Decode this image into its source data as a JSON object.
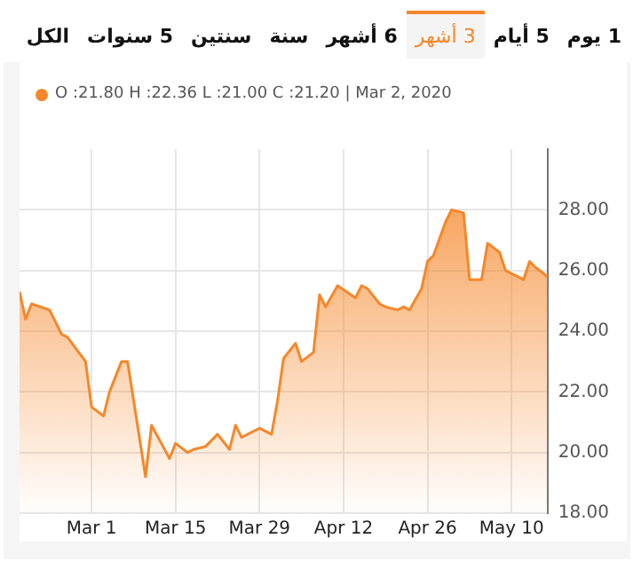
{
  "chart_data": {
    "type": "area",
    "subtitle": "O :21.80 H :22.36 L :21.00 C :21.20 | Mar 2, 2020",
    "annotations": [
      "1 يوم",
      "5 أيام",
      "3 أشهر",
      "6 أشهر",
      "سنة",
      "سنتين",
      "5 سنوات",
      "الكل"
    ],
    "x": [
      "2020-02-18",
      "2020-02-19",
      "2020-02-20",
      "2020-02-23",
      "2020-02-25",
      "2020-02-26",
      "2020-02-29",
      "2020-03-01",
      "2020-03-03",
      "2020-03-04",
      "2020-03-06",
      "2020-03-07",
      "2020-03-10",
      "2020-03-11",
      "2020-03-14",
      "2020-03-15",
      "2020-03-17",
      "2020-03-18",
      "2020-03-20",
      "2020-03-22",
      "2020-03-24",
      "2020-03-25",
      "2020-03-26",
      "2020-03-28",
      "2020-03-29",
      "2020-03-31",
      "2020-04-01",
      "2020-04-02",
      "2020-04-04",
      "2020-04-05",
      "2020-04-07",
      "2020-04-08",
      "2020-04-09",
      "2020-04-11",
      "2020-04-14",
      "2020-04-15",
      "2020-04-16",
      "2020-04-18",
      "2020-04-19",
      "2020-04-21",
      "2020-04-22",
      "2020-04-23",
      "2020-04-25",
      "2020-04-26",
      "2020-04-27",
      "2020-04-29",
      "2020-04-30",
      "2020-05-02",
      "2020-05-03",
      "2020-05-05",
      "2020-05-06",
      "2020-05-08",
      "2020-05-09",
      "2020-05-10",
      "2020-05-12",
      "2020-05-13",
      "2020-05-14",
      "2020-05-16"
    ],
    "series": [
      {
        "color": "#f5872a",
        "values": [
          25.3,
          24.4,
          24.9,
          24.7,
          23.9,
          23.8,
          23.0,
          21.5,
          21.2,
          22.0,
          23.0,
          23.0,
          19.2,
          20.9,
          19.8,
          20.3,
          20.0,
          20.1,
          20.2,
          20.6,
          20.1,
          20.9,
          20.5,
          20.7,
          20.8,
          20.6,
          21.7,
          23.1,
          23.6,
          23.0,
          23.3,
          25.2,
          24.8,
          25.5,
          25.1,
          25.5,
          25.4,
          24.9,
          24.8,
          24.7,
          24.8,
          24.7,
          25.4,
          26.3,
          26.5,
          27.6,
          28.0,
          27.9,
          25.7,
          25.7,
          26.9,
          26.6,
          26.0,
          25.9,
          25.7,
          26.3,
          26.1,
          25.8
        ]
      }
    ],
    "xlim": [
      "2020-02-18",
      "2020-05-16"
    ],
    "xticks": [
      {
        "value": "2020-03-01",
        "label": "Mar 1"
      },
      {
        "value": "2020-03-15",
        "label": "Mar 15"
      },
      {
        "value": "2020-03-29",
        "label": "Mar 29"
      },
      {
        "value": "2020-04-12",
        "label": "Apr 12"
      },
      {
        "value": "2020-04-26",
        "label": "Apr 26"
      },
      {
        "value": "2020-05-10",
        "label": "May 10"
      }
    ],
    "ylim": [
      18,
      30
    ],
    "yticks": [
      {
        "value": 18,
        "label": "18.00"
      },
      {
        "value": 20,
        "label": "20.00"
      },
      {
        "value": 22,
        "label": "22.00"
      },
      {
        "value": 24,
        "label": "24.00"
      },
      {
        "value": 26,
        "label": "26.00"
      },
      {
        "value": 28,
        "label": "28.00"
      }
    ],
    "grid": true,
    "legend": false,
    "marker": "none",
    "line_style": "solid"
  }
}
